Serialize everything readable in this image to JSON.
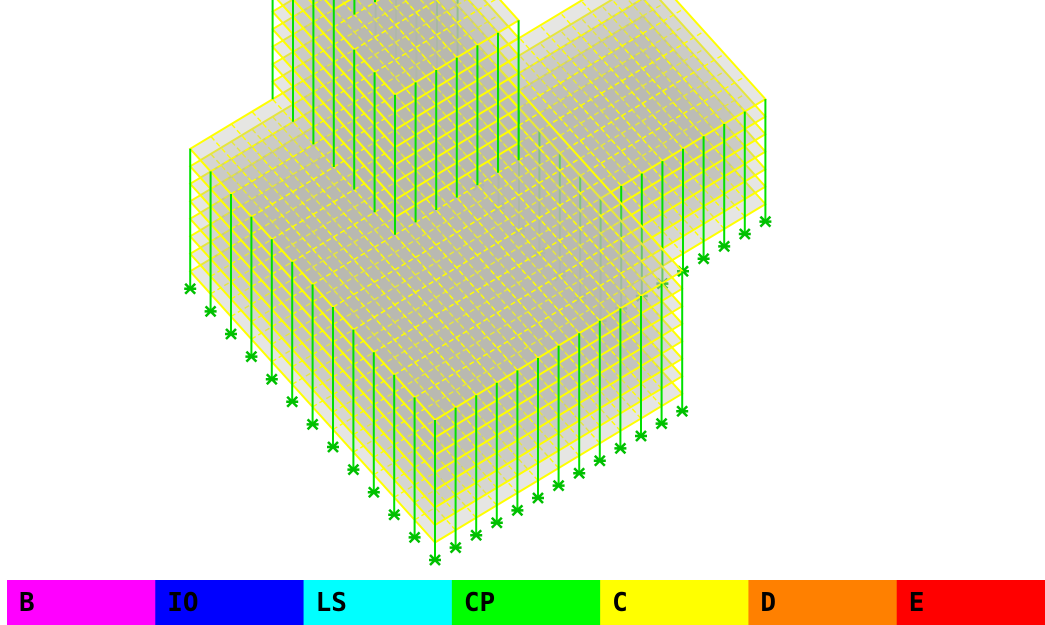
{
  "legend": {
    "items": [
      {
        "label": "B",
        "color": "#ff00ff"
      },
      {
        "label": "IO",
        "color": "#0000ff"
      },
      {
        "label": "LS",
        "color": "#00ffff"
      },
      {
        "label": "CP",
        "color": "#00ff00"
      },
      {
        "label": "C",
        "color": "#ffff00"
      },
      {
        "label": "D",
        "color": "#ff8000"
      },
      {
        "label": "E",
        "color": "#ff0000"
      }
    ]
  }
}
